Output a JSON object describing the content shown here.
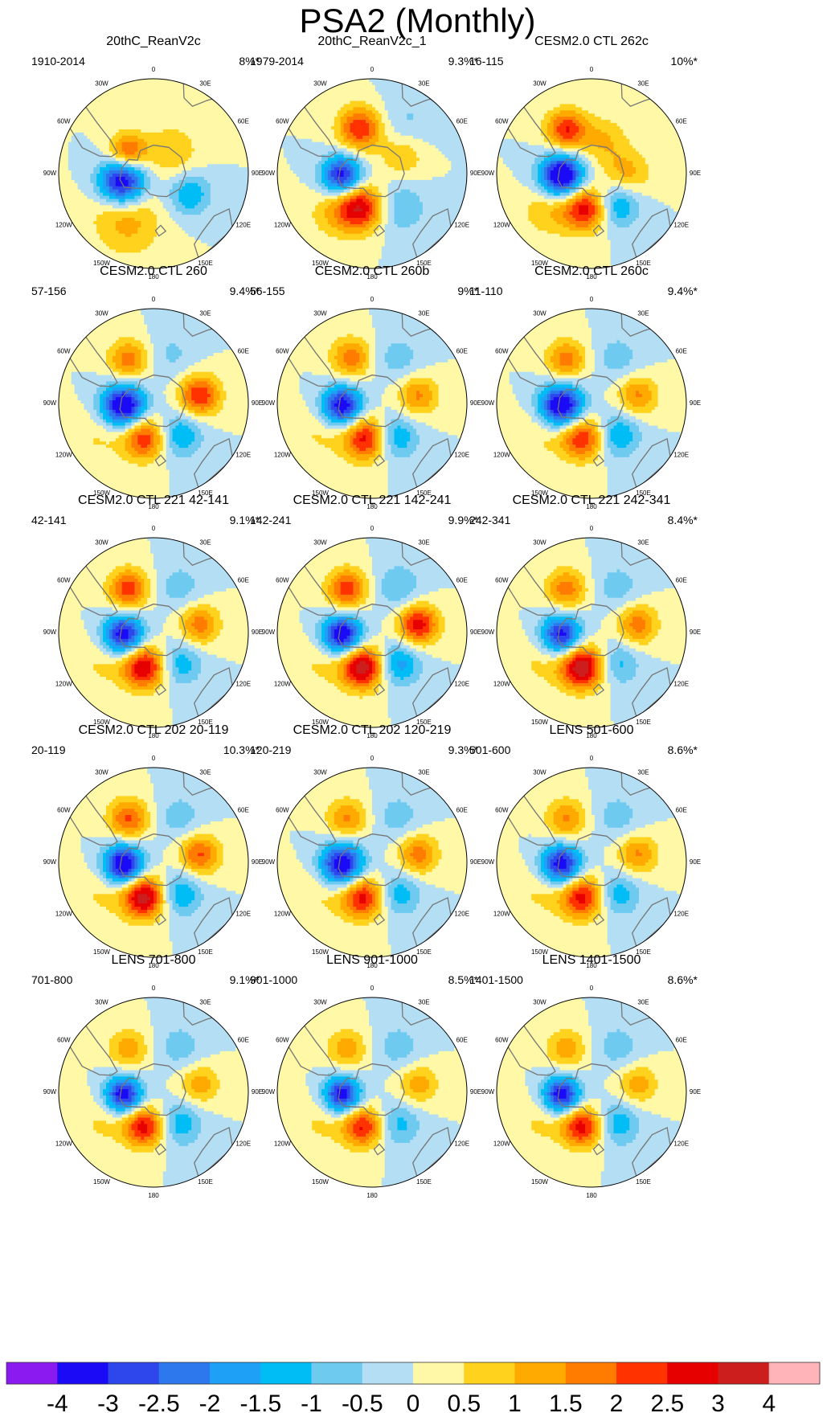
{
  "figure": {
    "title": "PSA2 (Monthly)",
    "chart_data": {
      "type": "heatmap",
      "description_kind": "polar stereographic maps of a regression/EOF pattern over the Southern Hemisphere",
      "longitude_ticks": [
        "0",
        "30E",
        "60E",
        "90E",
        "120E",
        "150E",
        "180",
        "150W",
        "120W",
        "90W",
        "60W",
        "30W"
      ],
      "panels": [
        {
          "title": "20thC_ReanV2c",
          "period": "1910-2014",
          "variance": "8%*",
          "centers": [
            {
              "lon": -105,
              "lat": -58,
              "value": -4.0,
              "spread": 14
            },
            {
              "lon": -50,
              "lat": -57,
              "value": 2.3,
              "spread": 11
            },
            {
              "lon": -140,
              "lat": -45,
              "value": 1.0,
              "spread": 20
            },
            {
              "lon": 120,
              "lat": -50,
              "value": -1.5,
              "spread": 13
            },
            {
              "lon": 40,
              "lat": -62,
              "value": 1.0,
              "spread": 16
            },
            {
              "lon": -160,
              "lat": -32,
              "value": 0.5,
              "spread": 20
            }
          ]
        },
        {
          "title": "20thC_ReanV2c_1",
          "period": "1979-2014",
          "variance": "9.3%*",
          "centers": [
            {
              "lon": -95,
              "lat": -60,
              "value": -3.5,
              "spread": 12
            },
            {
              "lon": -15,
              "lat": -45,
              "value": 2.5,
              "spread": 13
            },
            {
              "lon": -160,
              "lat": -55,
              "value": 3.0,
              "spread": 14
            },
            {
              "lon": 60,
              "lat": -55,
              "value": 1.0,
              "spread": 14
            },
            {
              "lon": 140,
              "lat": -48,
              "value": -1.0,
              "spread": 16
            },
            {
              "lon": -135,
              "lat": -38,
              "value": 0.8,
              "spread": 16
            },
            {
              "lon": 35,
              "lat": -32,
              "value": -0.6,
              "spread": 18
            }
          ]
        },
        {
          "title": "CESM2.0 CTL 262c",
          "period": "16-115",
          "variance": "10%*",
          "centers": [
            {
              "lon": -95,
              "lat": -60,
              "value": -4.2,
              "spread": 13
            },
            {
              "lon": -30,
              "lat": -42,
              "value": 2.5,
              "spread": 12
            },
            {
              "lon": -170,
              "lat": -55,
              "value": 2.8,
              "spread": 13
            },
            {
              "lon": 90,
              "lat": -55,
              "value": 1.2,
              "spread": 14
            },
            {
              "lon": 140,
              "lat": -50,
              "value": -1.7,
              "spread": 13
            },
            {
              "lon": 20,
              "lat": -55,
              "value": 1.0,
              "spread": 14
            },
            {
              "lon": -130,
              "lat": -38,
              "value": 1.0,
              "spread": 16
            }
          ]
        },
        {
          "title": "CESM2.0 CTL 260",
          "period": "57-156",
          "variance": "9.4%*",
          "centers": [
            {
              "lon": -95,
              "lat": -60,
              "value": -4.0,
              "spread": 13
            },
            {
              "lon": -30,
              "lat": -42,
              "value": 1.8,
              "spread": 12
            },
            {
              "lon": 80,
              "lat": -45,
              "value": 2.5,
              "spread": 12
            },
            {
              "lon": -165,
              "lat": -55,
              "value": 2.5,
              "spread": 13
            },
            {
              "lon": 140,
              "lat": -50,
              "value": -1.6,
              "spread": 13
            },
            {
              "lon": 20,
              "lat": -40,
              "value": -0.6,
              "spread": 14
            },
            {
              "lon": -120,
              "lat": -32,
              "value": 0.6,
              "spread": 16
            }
          ]
        },
        {
          "title": "CESM2.0 CTL 260b",
          "period": "56-155",
          "variance": "9%*",
          "centers": [
            {
              "lon": -95,
              "lat": -60,
              "value": -3.6,
              "spread": 12
            },
            {
              "lon": -25,
              "lat": -42,
              "value": 1.8,
              "spread": 12
            },
            {
              "lon": 80,
              "lat": -45,
              "value": 1.6,
              "spread": 12
            },
            {
              "lon": -170,
              "lat": -55,
              "value": 2.8,
              "spread": 13
            },
            {
              "lon": 145,
              "lat": -50,
              "value": -1.6,
              "spread": 13
            },
            {
              "lon": 30,
              "lat": -40,
              "value": -0.8,
              "spread": 14
            },
            {
              "lon": -120,
              "lat": -35,
              "value": 0.6,
              "spread": 16
            }
          ]
        },
        {
          "title": "CESM2.0 CTL 260c",
          "period": "11-110",
          "variance": "9.4%*",
          "centers": [
            {
              "lon": -95,
              "lat": -60,
              "value": -4.0,
              "spread": 13
            },
            {
              "lon": -30,
              "lat": -42,
              "value": 1.8,
              "spread": 12
            },
            {
              "lon": 80,
              "lat": -45,
              "value": 1.6,
              "spread": 12
            },
            {
              "lon": -165,
              "lat": -55,
              "value": 2.6,
              "spread": 13
            },
            {
              "lon": 140,
              "lat": -50,
              "value": -1.6,
              "spread": 13
            },
            {
              "lon": 30,
              "lat": -40,
              "value": -0.8,
              "spread": 14
            },
            {
              "lon": -120,
              "lat": -35,
              "value": 0.6,
              "spread": 16
            }
          ]
        },
        {
          "title": "CESM2.0 CTL 221 42-141",
          "period": "42-141",
          "variance": "9.1%*",
          "centers": [
            {
              "lon": -95,
              "lat": -60,
              "value": -3.6,
              "spread": 12
            },
            {
              "lon": -30,
              "lat": -42,
              "value": 2.3,
              "spread": 12
            },
            {
              "lon": 80,
              "lat": -45,
              "value": 1.8,
              "spread": 12
            },
            {
              "lon": -165,
              "lat": -55,
              "value": 3.1,
              "spread": 13
            },
            {
              "lon": 140,
              "lat": -50,
              "value": -1.4,
              "spread": 13
            },
            {
              "lon": 30,
              "lat": -40,
              "value": -0.8,
              "spread": 14
            },
            {
              "lon": -120,
              "lat": -35,
              "value": 0.6,
              "spread": 16
            }
          ]
        },
        {
          "title": "CESM2.0 CTL 221 142-241",
          "period": "142-241",
          "variance": "9.9%*",
          "centers": [
            {
              "lon": -95,
              "lat": -60,
              "value": -3.8,
              "spread": 12
            },
            {
              "lon": -30,
              "lat": -42,
              "value": 2.3,
              "spread": 12
            },
            {
              "lon": 80,
              "lat": -45,
              "value": 2.8,
              "spread": 12
            },
            {
              "lon": -165,
              "lat": -55,
              "value": 3.5,
              "spread": 13
            },
            {
              "lon": 140,
              "lat": -50,
              "value": -1.8,
              "spread": 13
            },
            {
              "lon": 30,
              "lat": -40,
              "value": -1.0,
              "spread": 14
            },
            {
              "lon": -120,
              "lat": -35,
              "value": 0.6,
              "spread": 16
            }
          ]
        },
        {
          "title": "CESM2.0 CTL 221 242-341",
          "period": "242-341",
          "variance": "8.4%*",
          "centers": [
            {
              "lon": -95,
              "lat": -60,
              "value": -3.4,
              "spread": 12
            },
            {
              "lon": -30,
              "lat": -42,
              "value": 1.8,
              "spread": 12
            },
            {
              "lon": 80,
              "lat": -45,
              "value": 1.8,
              "spread": 12
            },
            {
              "lon": -165,
              "lat": -55,
              "value": 3.6,
              "spread": 13
            },
            {
              "lon": 140,
              "lat": -50,
              "value": -1.2,
              "spread": 13
            },
            {
              "lon": 30,
              "lat": -40,
              "value": -0.8,
              "spread": 14
            },
            {
              "lon": -120,
              "lat": -35,
              "value": 0.6,
              "spread": 16
            }
          ]
        },
        {
          "title": "CESM2.0 CTL 202 20-119",
          "period": "20-119",
          "variance": "10.3%*",
          "centers": [
            {
              "lon": -95,
              "lat": -60,
              "value": -4.0,
              "spread": 12
            },
            {
              "lon": -30,
              "lat": -42,
              "value": 2.1,
              "spread": 12
            },
            {
              "lon": 80,
              "lat": -45,
              "value": 2.1,
              "spread": 12
            },
            {
              "lon": -165,
              "lat": -55,
              "value": 3.4,
              "spread": 13
            },
            {
              "lon": 140,
              "lat": -50,
              "value": -1.6,
              "spread": 13
            },
            {
              "lon": 30,
              "lat": -40,
              "value": -0.8,
              "spread": 14
            },
            {
              "lon": -120,
              "lat": -35,
              "value": 0.6,
              "spread": 16
            }
          ]
        },
        {
          "title": "CESM2.0 CTL 202 120-219",
          "period": "120-219",
          "variance": "9.3%*",
          "centers": [
            {
              "lon": -95,
              "lat": -60,
              "value": -3.8,
              "spread": 13
            },
            {
              "lon": -30,
              "lat": -42,
              "value": 1.6,
              "spread": 12
            },
            {
              "lon": 80,
              "lat": -45,
              "value": 1.8,
              "spread": 12
            },
            {
              "lon": -165,
              "lat": -55,
              "value": 2.8,
              "spread": 13
            },
            {
              "lon": 140,
              "lat": -50,
              "value": -1.4,
              "spread": 13
            },
            {
              "lon": 30,
              "lat": -40,
              "value": -0.8,
              "spread": 14
            },
            {
              "lon": -120,
              "lat": -35,
              "value": 0.6,
              "spread": 16
            }
          ]
        },
        {
          "title": "LENS 501-600",
          "period": "501-600",
          "variance": "8.6%*",
          "centers": [
            {
              "lon": -95,
              "lat": -60,
              "value": -3.6,
              "spread": 12
            },
            {
              "lon": -30,
              "lat": -42,
              "value": 1.6,
              "spread": 12
            },
            {
              "lon": 80,
              "lat": -45,
              "value": 1.6,
              "spread": 12
            },
            {
              "lon": -165,
              "lat": -55,
              "value": 2.8,
              "spread": 13
            },
            {
              "lon": 140,
              "lat": -50,
              "value": -1.4,
              "spread": 13
            },
            {
              "lon": 30,
              "lat": -40,
              "value": -0.8,
              "spread": 14
            },
            {
              "lon": -120,
              "lat": -35,
              "value": 0.6,
              "spread": 16
            }
          ]
        },
        {
          "title": "LENS 701-800",
          "period": "701-800",
          "variance": "9.1%*",
          "centers": [
            {
              "lon": -95,
              "lat": -60,
              "value": -3.6,
              "spread": 11
            },
            {
              "lon": -30,
              "lat": -42,
              "value": 1.3,
              "spread": 12
            },
            {
              "lon": 80,
              "lat": -45,
              "value": 1.3,
              "spread": 12
            },
            {
              "lon": -165,
              "lat": -55,
              "value": 2.8,
              "spread": 12
            },
            {
              "lon": 140,
              "lat": -50,
              "value": -1.4,
              "spread": 13
            },
            {
              "lon": 30,
              "lat": -40,
              "value": -0.8,
              "spread": 14
            },
            {
              "lon": -120,
              "lat": -35,
              "value": 0.6,
              "spread": 16
            }
          ]
        },
        {
          "title": "LENS 901-1000",
          "period": "901-1000",
          "variance": "8.5%*",
          "centers": [
            {
              "lon": -95,
              "lat": -60,
              "value": -3.5,
              "spread": 11
            },
            {
              "lon": -30,
              "lat": -42,
              "value": 1.3,
              "spread": 12
            },
            {
              "lon": 80,
              "lat": -45,
              "value": 1.3,
              "spread": 12
            },
            {
              "lon": -165,
              "lat": -55,
              "value": 2.6,
              "spread": 12
            },
            {
              "lon": 140,
              "lat": -50,
              "value": -1.2,
              "spread": 13
            },
            {
              "lon": 30,
              "lat": -40,
              "value": -0.8,
              "spread": 14
            },
            {
              "lon": -120,
              "lat": -35,
              "value": 0.6,
              "spread": 16
            }
          ]
        },
        {
          "title": "LENS 1401-1500",
          "period": "1401-1500",
          "variance": "8.6%*",
          "centers": [
            {
              "lon": -95,
              "lat": -60,
              "value": -3.6,
              "spread": 11
            },
            {
              "lon": -30,
              "lat": -42,
              "value": 1.3,
              "spread": 12
            },
            {
              "lon": 80,
              "lat": -45,
              "value": 1.3,
              "spread": 12
            },
            {
              "lon": -165,
              "lat": -55,
              "value": 2.8,
              "spread": 12
            },
            {
              "lon": 140,
              "lat": -50,
              "value": -1.4,
              "spread": 13
            },
            {
              "lon": 30,
              "lat": -40,
              "value": -0.8,
              "spread": 14
            },
            {
              "lon": -120,
              "lat": -35,
              "value": 0.6,
              "spread": 16
            }
          ]
        }
      ],
      "colorbar": {
        "levels": [
          "-4",
          "-3",
          "-2.5",
          "-2",
          "-1.5",
          "-1",
          "-0.5",
          "0",
          "0.5",
          "1",
          "1.5",
          "2",
          "2.5",
          "3",
          "4"
        ],
        "colors": [
          "#8B1AF0",
          "#1A0AF5",
          "#2D47EC",
          "#2D78EC",
          "#1EA0F6",
          "#00BEF5",
          "#6FCAF0",
          "#B4DEF4",
          "#FFF8A6",
          "#FFD21E",
          "#FFAA00",
          "#FF7C00",
          "#FF3200",
          "#E60000",
          "#CD1E1E",
          "#FFB4B9"
        ]
      },
      "coastline_color": "#777777"
    }
  }
}
